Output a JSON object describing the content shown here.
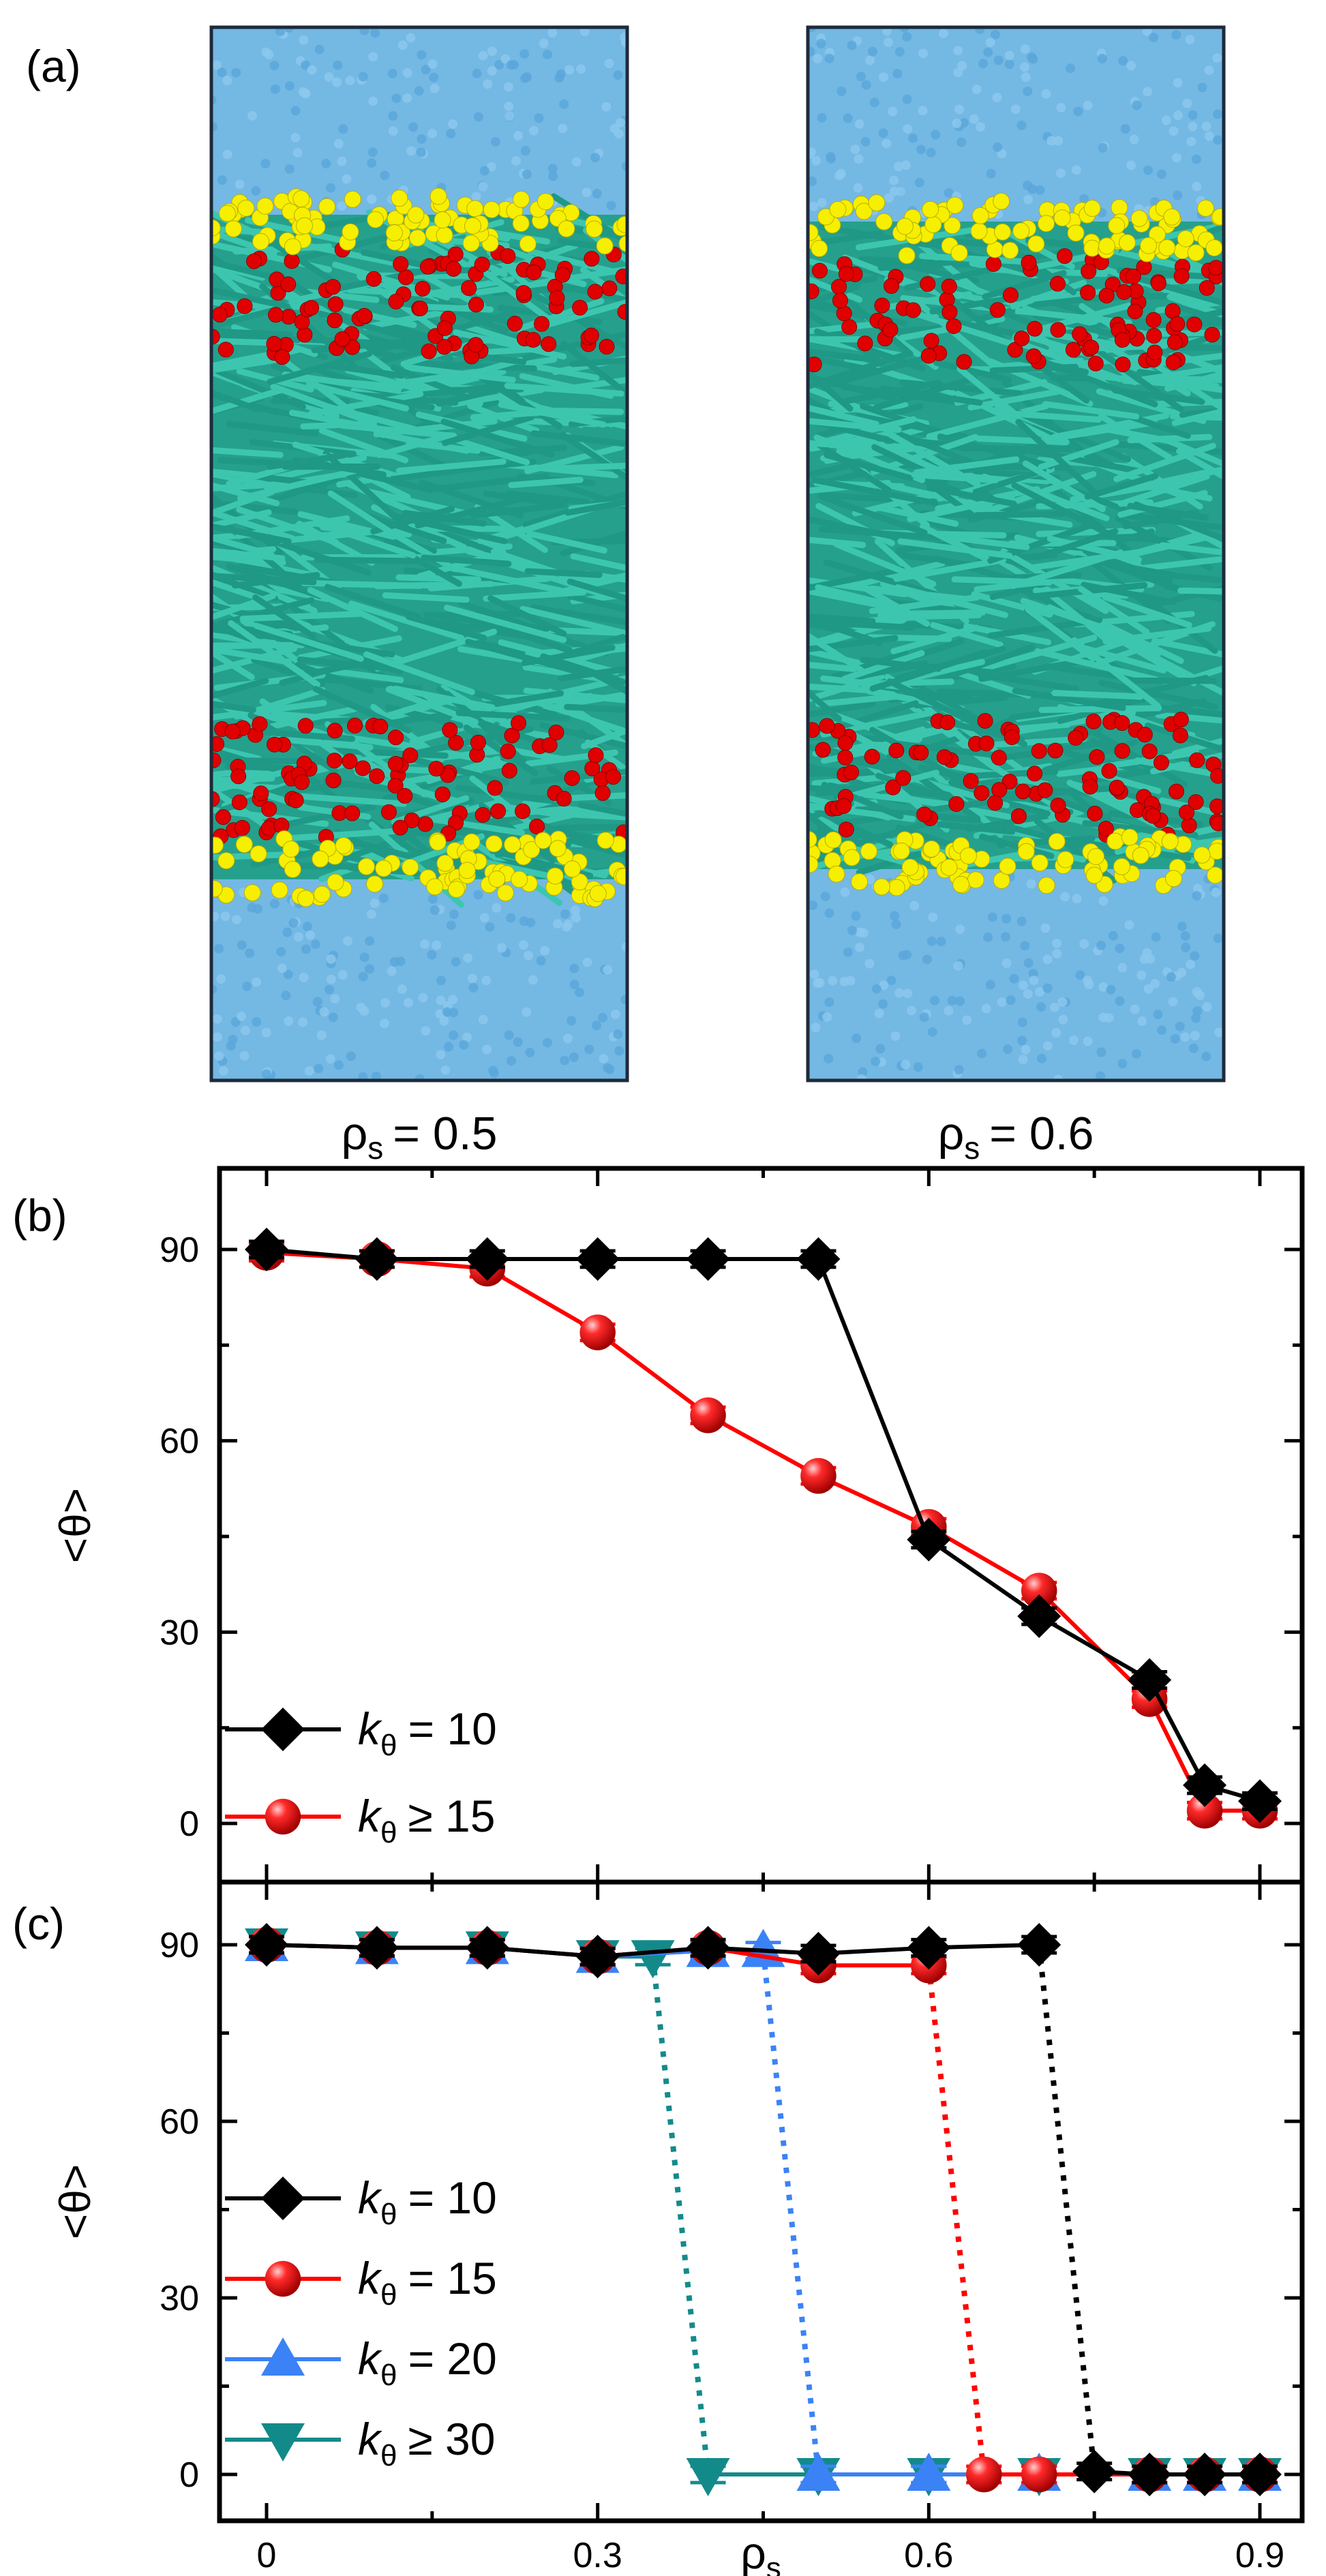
{
  "panel_a": {
    "label": "(a)",
    "snapshots": [
      {
        "caption": "ρs = 0.5",
        "rho_symbol": "ρ",
        "rho_sub": "s",
        "rho_value": "= 0.5"
      },
      {
        "caption": "ρs = 0.6",
        "rho_symbol": "ρ",
        "rho_sub": "s",
        "rho_value": "= 0.6"
      }
    ],
    "colors": {
      "solvent": "#74b8e4",
      "head": "#f5f000",
      "tail_bead": "#e30000",
      "rod": "#2fb5a0",
      "frame": "#1e2a3a"
    }
  },
  "chart_data": [
    {
      "type": "line",
      "panel_label": "(b)",
      "xlabel": "ρs",
      "ylabel": "<θ>",
      "xlim": [
        -0.05,
        0.95
      ],
      "ylim": [
        -5,
        97
      ],
      "xticks": [
        0,
        0.3,
        0.6,
        0.9
      ],
      "yticks": [
        0,
        30,
        60,
        90
      ],
      "series": [
        {
          "name": "kθ = 10",
          "k_symbol": "k",
          "k_sub": "θ",
          "k_rel": "= 10",
          "color": "#000000",
          "marker": "diamond",
          "linestyle": "solid",
          "x": [
            0,
            0.1,
            0.2,
            0.3,
            0.4,
            0.5,
            0.6,
            0.7,
            0.8,
            0.85,
            0.9
          ],
          "y": [
            90,
            88.5,
            88.5,
            88.5,
            88.5,
            88.5,
            44.5,
            32.5,
            22.5,
            6,
            3.5
          ]
        },
        {
          "name": "kθ ≥ 15",
          "k_symbol": "k",
          "k_sub": "θ",
          "k_rel": "≥ 15",
          "color": "#ff0000",
          "marker": "sphere",
          "linestyle": "solid",
          "x": [
            0,
            0.1,
            0.2,
            0.3,
            0.4,
            0.5,
            0.6,
            0.7,
            0.8,
            0.85,
            0.9
          ],
          "y": [
            89.5,
            88.5,
            87,
            77,
            64,
            54.5,
            46.5,
            36.5,
            19.5,
            2,
            2
          ]
        }
      ]
    },
    {
      "type": "line",
      "panel_label": "(c)",
      "xlabel": "ρs",
      "ylabel": "<θ>",
      "xlim": [
        -0.05,
        0.95
      ],
      "ylim": [
        -5,
        97
      ],
      "xticks": [
        0,
        0.3,
        0.6,
        0.9
      ],
      "xtick_labels": [
        "0",
        "0.3",
        "0.6",
        "0.9"
      ],
      "yticks": [
        0,
        30,
        60,
        90
      ],
      "series": [
        {
          "name": "kθ ≥ 30",
          "k_symbol": "k",
          "k_sub": "θ",
          "k_rel": "≥ 30",
          "color": "#138a8a",
          "marker": "triangle-down",
          "segments": [
            {
              "x": [
                0,
                0.1,
                0.2,
                0.3,
                0.35
              ],
              "y": [
                90,
                89.5,
                89.5,
                88,
                88
              ],
              "style": "solid"
            },
            {
              "x": [
                0.35,
                0.4
              ],
              "y": [
                88,
                0
              ],
              "style": "dotted"
            },
            {
              "x": [
                0.4,
                0.5,
                0.6,
                0.7,
                0.8,
                0.85,
                0.9
              ],
              "y": [
                0,
                0,
                0,
                0,
                0,
                0,
                0
              ],
              "style": "solid"
            }
          ]
        },
        {
          "name": "kθ = 20",
          "k_symbol": "k",
          "k_sub": "θ",
          "k_rel": "= 20",
          "color": "#3b82f6",
          "marker": "triangle-up",
          "segments": [
            {
              "x": [
                0,
                0.1,
                0.2,
                0.3,
                0.4,
                0.45
              ],
              "y": [
                90,
                89.5,
                89.5,
                88,
                89,
                89
              ],
              "style": "solid"
            },
            {
              "x": [
                0.45,
                0.5
              ],
              "y": [
                89,
                0
              ],
              "style": "dotted"
            },
            {
              "x": [
                0.5,
                0.6,
                0.7,
                0.8,
                0.85,
                0.9
              ],
              "y": [
                0,
                0,
                0,
                0,
                0,
                0
              ],
              "style": "solid"
            }
          ]
        },
        {
          "name": "kθ = 15",
          "k_symbol": "k",
          "k_sub": "θ",
          "k_rel": "= 15",
          "color": "#ff0000",
          "marker": "sphere",
          "segments": [
            {
              "x": [
                0,
                0.1,
                0.2,
                0.3,
                0.4,
                0.5,
                0.6
              ],
              "y": [
                90,
                89.5,
                89.5,
                88,
                89.5,
                86.5,
                86.5
              ],
              "style": "solid"
            },
            {
              "x": [
                0.6,
                0.65
              ],
              "y": [
                86.5,
                0
              ],
              "style": "dotted"
            },
            {
              "x": [
                0.65,
                0.7,
                0.8,
                0.85,
                0.9
              ],
              "y": [
                0,
                0,
                0,
                0,
                0
              ],
              "style": "solid"
            }
          ]
        },
        {
          "name": "kθ = 10",
          "k_symbol": "k",
          "k_sub": "θ",
          "k_rel": "= 10",
          "color": "#000000",
          "marker": "diamond",
          "segments": [
            {
              "x": [
                0,
                0.1,
                0.2,
                0.3,
                0.4,
                0.5,
                0.6,
                0.7
              ],
              "y": [
                90,
                89.5,
                89.5,
                88,
                89.5,
                88.5,
                89.5,
                90
              ],
              "style": "solid"
            },
            {
              "x": [
                0.7,
                0.75
              ],
              "y": [
                90,
                0.5
              ],
              "style": "dotted"
            },
            {
              "x": [
                0.75,
                0.8,
                0.85,
                0.9
              ],
              "y": [
                0.5,
                0,
                0,
                0
              ],
              "style": "solid"
            }
          ]
        }
      ],
      "legend_order": [
        "kθ = 10",
        "kθ = 15",
        "kθ = 20",
        "kθ ≥ 30"
      ]
    }
  ]
}
